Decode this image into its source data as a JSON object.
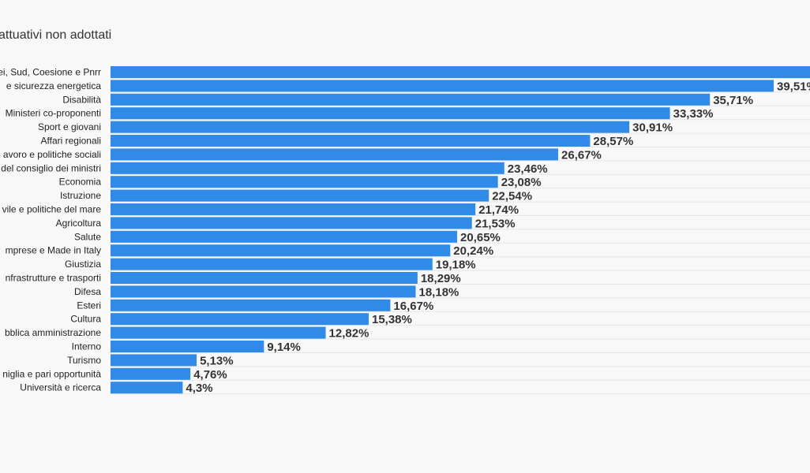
{
  "chart_data": {
    "type": "bar",
    "orientation": "horizontal",
    "title": "attuativi non adottati",
    "bar_color": "#2f8ae8",
    "categories": [
      "ei, Sud, Coesione e Pnrr",
      "e sicurezza energetica",
      "Disabilità",
      "Ministeri co-proponenti",
      "Sport e giovani",
      "Affari regionali",
      "avoro e politiche sociali",
      "del consiglio dei ministri",
      "Economia",
      "Istruzione",
      "vile e politiche del mare",
      "Agricoltura",
      "Salute",
      "mprese e Made in Italy",
      "Giustizia",
      "nfrastrutture e trasporti",
      "Difesa",
      "Esteri",
      "Cultura",
      "bblica amministrazione",
      "Interno",
      "Turismo",
      "niglia e pari opportunità",
      "Università e ricerca"
    ],
    "values": [
      45.0,
      39.51,
      35.71,
      33.33,
      30.91,
      28.57,
      26.67,
      23.46,
      23.08,
      22.54,
      21.74,
      21.53,
      20.65,
      20.24,
      19.18,
      18.29,
      18.18,
      16.67,
      15.38,
      12.82,
      9.14,
      5.13,
      4.76,
      4.3
    ],
    "value_labels": [
      "",
      "39,51%",
      "35,71%",
      "33,33%",
      "30,91%",
      "28,57%",
      "26,67%",
      "23,46%",
      "23,08%",
      "22,54%",
      "21,74%",
      "21,53%",
      "20,65%",
      "20,24%",
      "19,18%",
      "18,29%",
      "18,18%",
      "16,67%",
      "15,38%",
      "12,82%",
      "9,14%",
      "5,13%",
      "4,76%",
      "4,3%"
    ],
    "xlim": [
      0,
      43.5
    ],
    "grid": true,
    "legend": "none"
  }
}
